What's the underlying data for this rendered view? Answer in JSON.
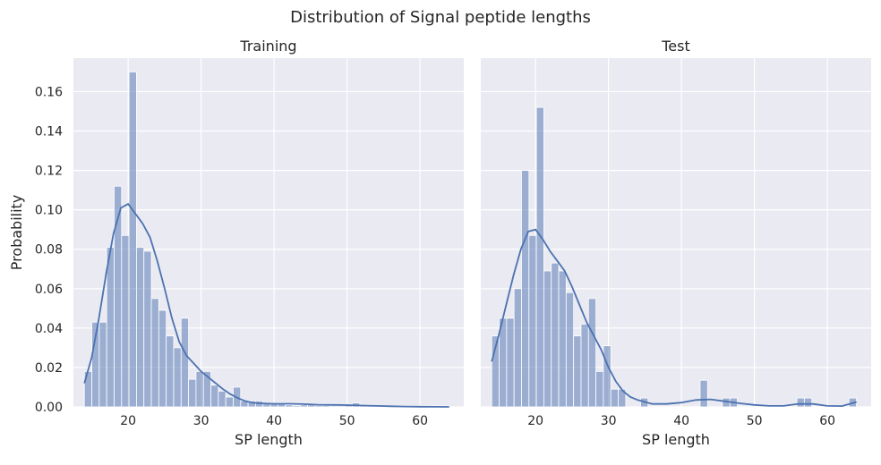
{
  "figure": {
    "title": "Distribution of Signal peptide lengths"
  },
  "style": {
    "bar_fill": "#4c72b0",
    "bar_opacity": 0.5,
    "kde_color": "#4c72b0",
    "panel_bg": "#eaeaf2",
    "grid_color": "#ffffff"
  },
  "chart_data": [
    {
      "type": "histogram",
      "title": "Training",
      "xlabel": "SP length",
      "ylabel": "Probability",
      "xlim": [
        12.5,
        66
      ],
      "ylim": [
        0,
        0.177
      ],
      "xticks": [
        20,
        30,
        40,
        50,
        60
      ],
      "yticks": [
        0.0,
        0.02,
        0.04,
        0.06,
        0.08,
        0.1,
        0.12,
        0.14,
        0.16
      ],
      "ytick_labels": [
        "0.00",
        "0.02",
        "0.04",
        "0.06",
        "0.08",
        "0.10",
        "0.12",
        "0.14",
        "0.16"
      ],
      "grid": true,
      "bin_start": 14,
      "bin_width": 1.02,
      "values": [
        0.018,
        0.043,
        0.043,
        0.081,
        0.112,
        0.087,
        0.17,
        0.081,
        0.079,
        0.055,
        0.049,
        0.036,
        0.03,
        0.045,
        0.014,
        0.018,
        0.018,
        0.011,
        0.008,
        0.005,
        0.01,
        0.003,
        0.003,
        0.003,
        0.002,
        0.002,
        0.002,
        0.001,
        0.0007,
        0.001,
        0.001,
        0.0007,
        0.0007,
        0.0005,
        0.0005,
        0.001,
        0.002,
        0.0007,
        0.0005,
        0.0005,
        0.0005,
        0.0005,
        0.0005,
        0.0005,
        0.0005,
        0.0005,
        0.0005,
        0.0005,
        0.0005
      ],
      "kde": {
        "x": [
          14,
          15,
          16,
          17,
          18,
          19,
          20,
          21,
          22,
          23,
          24,
          25,
          26,
          27,
          28,
          29,
          30,
          31,
          32,
          33,
          34,
          35,
          36,
          37,
          38,
          40,
          42,
          44,
          46,
          48,
          50,
          52,
          54,
          56,
          58,
          60,
          62,
          64
        ],
        "y": [
          0.012,
          0.025,
          0.045,
          0.068,
          0.088,
          0.101,
          0.103,
          0.098,
          0.093,
          0.086,
          0.074,
          0.06,
          0.045,
          0.033,
          0.026,
          0.022,
          0.018,
          0.015,
          0.012,
          0.009,
          0.0065,
          0.0045,
          0.003,
          0.0022,
          0.0018,
          0.0016,
          0.0016,
          0.0014,
          0.0011,
          0.001,
          0.0009,
          0.0007,
          0.0005,
          0.0003,
          0.0002,
          0.0001,
          5e-05,
          0.0
        ]
      }
    },
    {
      "type": "histogram",
      "title": "Test",
      "xlabel": "SP length",
      "ylabel": "",
      "xlim": [
        12.5,
        66
      ],
      "ylim": [
        0,
        0.177
      ],
      "xticks": [
        20,
        30,
        40,
        50,
        60
      ],
      "yticks": [
        0.0,
        0.02,
        0.04,
        0.06,
        0.08,
        0.1,
        0.12,
        0.14,
        0.16
      ],
      "ytick_labels": [],
      "grid": true,
      "bin_start": 14,
      "bin_width": 1.02,
      "values": [
        0.036,
        0.045,
        0.045,
        0.06,
        0.12,
        0.087,
        0.152,
        0.069,
        0.073,
        0.069,
        0.058,
        0.036,
        0.042,
        0.055,
        0.018,
        0.031,
        0.009,
        0.009,
        0.0,
        0.0,
        0.0045,
        0.0,
        0.0,
        0.0,
        0.0,
        0.0,
        0.0,
        0.0,
        0.0135,
        0.0,
        0.0,
        0.0045,
        0.0045,
        0.0,
        0.0,
        0.0,
        0.0,
        0.0,
        0.0,
        0.0,
        0.0,
        0.0045,
        0.0045,
        0.0,
        0.0,
        0.0,
        0.0,
        0.0,
        0.0045
      ],
      "kde": {
        "x": [
          14,
          15,
          16,
          17,
          18,
          19,
          20,
          21,
          22,
          23,
          24,
          25,
          26,
          27,
          28,
          29,
          30,
          31,
          32,
          33,
          34,
          35,
          36,
          38,
          40,
          42,
          44,
          46,
          48,
          50,
          52,
          54,
          56,
          58,
          60,
          62,
          64
        ],
        "y": [
          0.023,
          0.037,
          0.052,
          0.067,
          0.08,
          0.089,
          0.09,
          0.085,
          0.079,
          0.074,
          0.069,
          0.061,
          0.052,
          0.043,
          0.036,
          0.029,
          0.02,
          0.013,
          0.008,
          0.005,
          0.0035,
          0.0025,
          0.0015,
          0.0015,
          0.0022,
          0.0035,
          0.0038,
          0.0028,
          0.0018,
          0.001,
          0.0005,
          0.0005,
          0.0015,
          0.0015,
          0.0005,
          0.0004,
          0.0025
        ]
      }
    }
  ]
}
